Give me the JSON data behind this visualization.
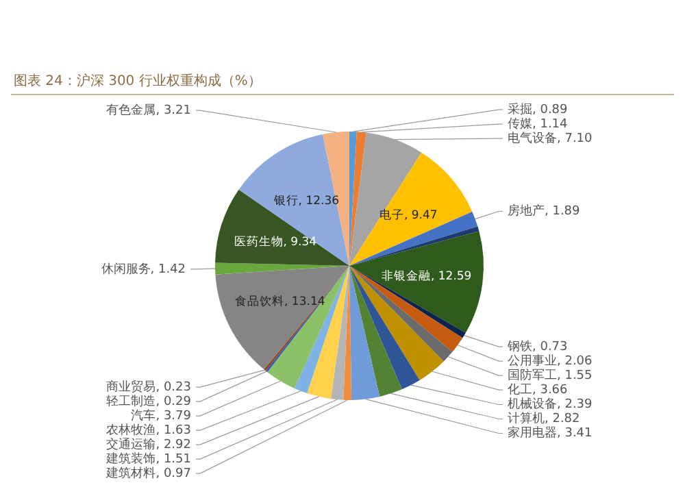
{
  "chart_data": {
    "type": "pie",
    "title": "图表 24：沪深 300 行业权重构成（%）",
    "categories": [
      "采掘",
      "传媒",
      "电气设备",
      "电子",
      "房地产",
      null,
      "非银金融",
      "钢铁",
      "公用事业",
      "国防军工",
      "化工",
      "机械设备",
      "计算机",
      "家用电器",
      "建筑材料",
      "建筑装饰",
      "交通运输",
      "农林牧渔",
      "汽车",
      "轻工制造",
      "商业贸易",
      "食品饮料",
      "休闲服务",
      "医药生物",
      "银行",
      "有色金属"
    ],
    "values": [
      0.89,
      1.14,
      7.1,
      9.47,
      1.89,
      0.6,
      12.59,
      0.73,
      2.06,
      1.55,
      3.66,
      2.39,
      2.82,
      3.41,
      0.97,
      1.51,
      2.92,
      1.63,
      3.79,
      0.29,
      0.23,
      13.14,
      1.42,
      9.34,
      12.36,
      3.21
    ],
    "value_labels": [
      "0.89",
      "1.14",
      "7.10",
      "9.47",
      "1.89",
      null,
      "12.59",
      "0.73",
      "2.06",
      "1.55",
      "3.66",
      "2.39",
      "2.82",
      "3.41",
      "0.97",
      "1.51",
      "2.92",
      "1.63",
      "3.79",
      "0.29",
      "0.23",
      "13.14",
      "1.42",
      "9.34",
      "12.36",
      "3.21"
    ],
    "colors": [
      "#5b9bd5",
      "#ed7d31",
      "#a5a5a5",
      "#ffc000",
      "#4472c4",
      "#1f3a6e",
      "#2e5a1c",
      "#0f2350",
      "#c55a11",
      "#6b6b6b",
      "#bf9000",
      "#2f5597",
      "#548235",
      "#6f9bd8",
      "#f08c3c",
      "#b5b5b5",
      "#ffd24d",
      "#7fb2e5",
      "#8cc168",
      "#3a5fa8",
      "#9e3d0e",
      "#858585",
      "#6aa83e",
      "#375623",
      "#8faadc",
      "#f4b183"
    ]
  }
}
